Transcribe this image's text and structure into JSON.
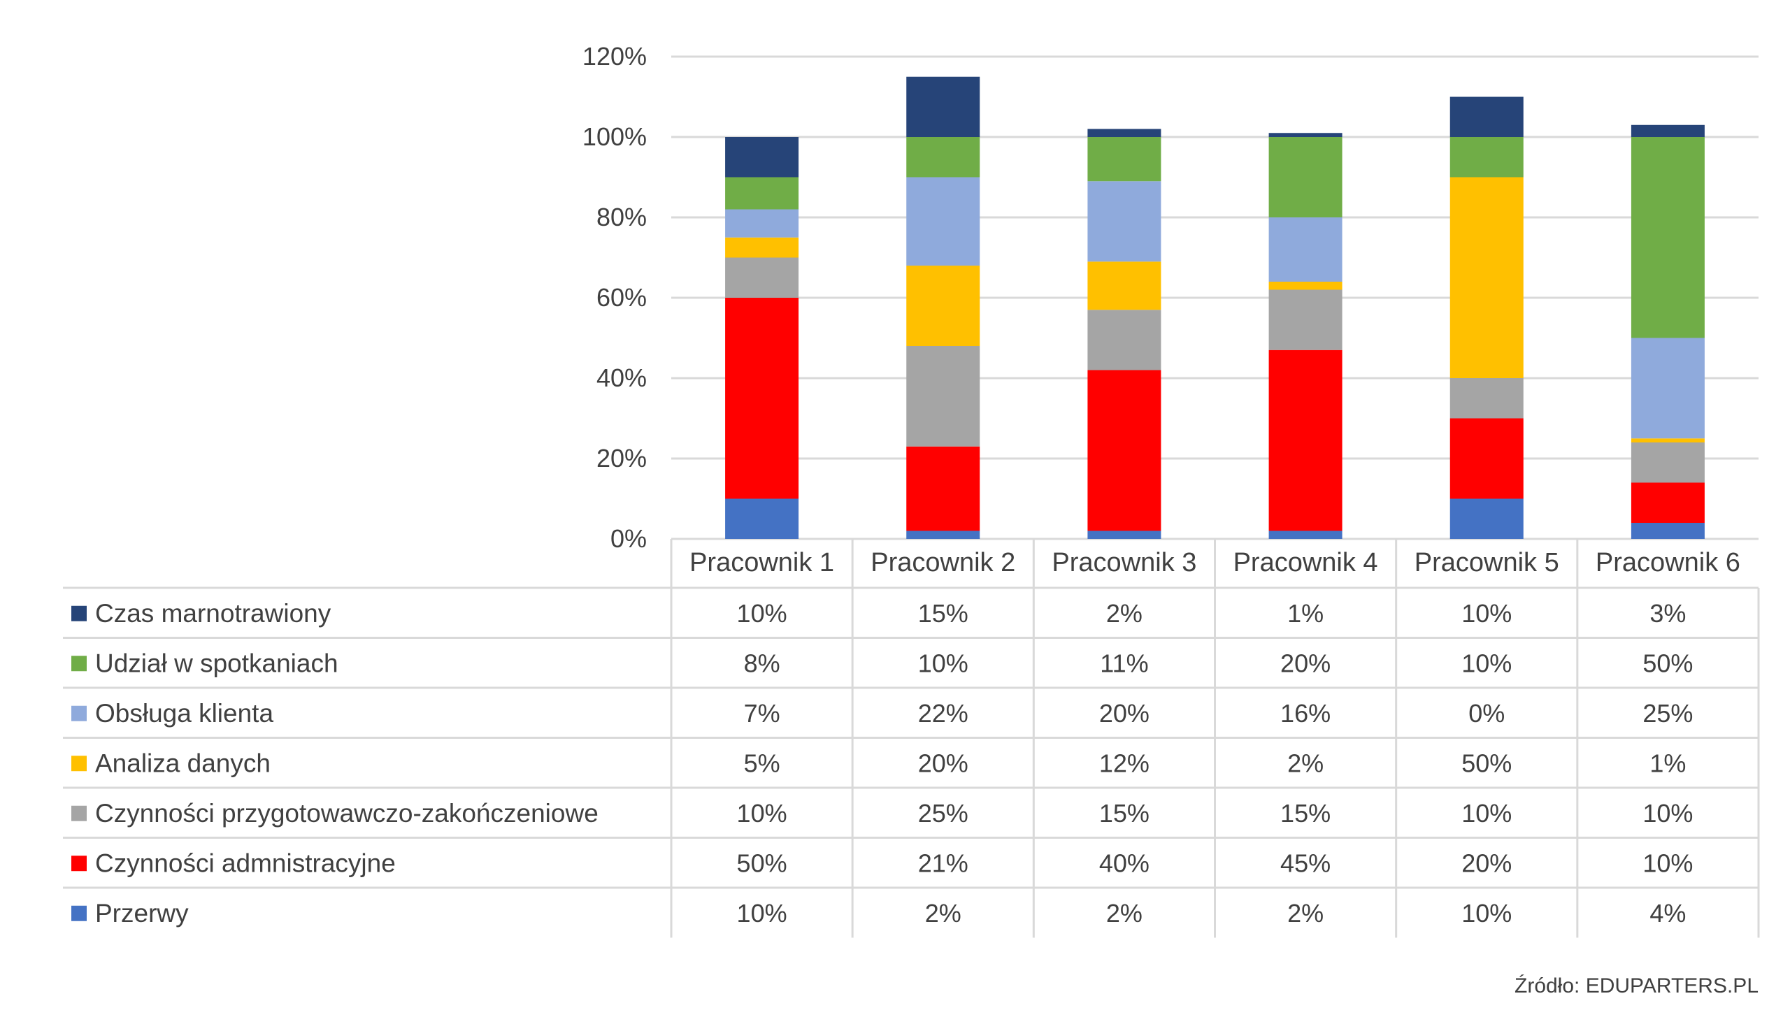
{
  "chart_data": {
    "type": "bar",
    "stacked": true,
    "categories": [
      "Pracownik 1",
      "Pracownik 2",
      "Pracownik 3",
      "Pracownik 4",
      "Pracownik 5",
      "Pracownik 6"
    ],
    "series": [
      {
        "name": "Przerwy",
        "color": "#4472C4",
        "values": [
          10,
          2,
          2,
          2,
          10,
          4
        ]
      },
      {
        "name": "Czynności admnistracyjne",
        "color": "#FF0000",
        "values": [
          50,
          21,
          40,
          45,
          20,
          10
        ]
      },
      {
        "name": "Czynności przygotowawczo-zakończeniowe",
        "color": "#A5A5A5",
        "values": [
          10,
          25,
          15,
          15,
          10,
          10
        ]
      },
      {
        "name": "Analiza danych",
        "color": "#FFC000",
        "values": [
          5,
          20,
          12,
          2,
          50,
          1
        ]
      },
      {
        "name": "Obsługa klienta",
        "color": "#8FAADC",
        "values": [
          7,
          22,
          20,
          16,
          0,
          25
        ]
      },
      {
        "name": "Udział w spotkaniach",
        "color": "#70AD47",
        "values": [
          8,
          10,
          11,
          20,
          10,
          50
        ]
      },
      {
        "name": "Czas marnotrawiony",
        "color": "#264478",
        "values": [
          10,
          15,
          2,
          1,
          10,
          3
        ]
      }
    ],
    "table_rows": [
      {
        "label": "Czas marnotrawiony",
        "cells": [
          "10%",
          "15%",
          "2%",
          "1%",
          "10%",
          "3%"
        ]
      },
      {
        "label": "Udział w spotkaniach",
        "cells": [
          "8%",
          "10%",
          "11%",
          "20%",
          "10%",
          "50%"
        ]
      },
      {
        "label": "Obsługa klienta",
        "cells": [
          "7%",
          "22%",
          "20%",
          "16%",
          "0%",
          "25%"
        ]
      },
      {
        "label": "Analiza danych",
        "cells": [
          "5%",
          "20%",
          "12%",
          "2%",
          "50%",
          "1%"
        ]
      },
      {
        "label": "Czynności przygotowawczo-zakończeniowe",
        "cells": [
          "10%",
          "25%",
          "15%",
          "15%",
          "10%",
          "10%"
        ]
      },
      {
        "label": "Czynności admnistracyjne",
        "cells": [
          "50%",
          "21%",
          "40%",
          "45%",
          "20%",
          "10%"
        ]
      },
      {
        "label": "Przerwy",
        "cells": [
          "10%",
          "2%",
          "2%",
          "2%",
          "10%",
          "4%"
        ]
      }
    ],
    "y_ticks": [
      "0%",
      "20%",
      "40%",
      "60%",
      "80%",
      "100%",
      "120%"
    ],
    "ylim": [
      0,
      120
    ],
    "grid": true,
    "legend": "data-table"
  },
  "source_text": "Źródło: EDUPARTERS.PL"
}
